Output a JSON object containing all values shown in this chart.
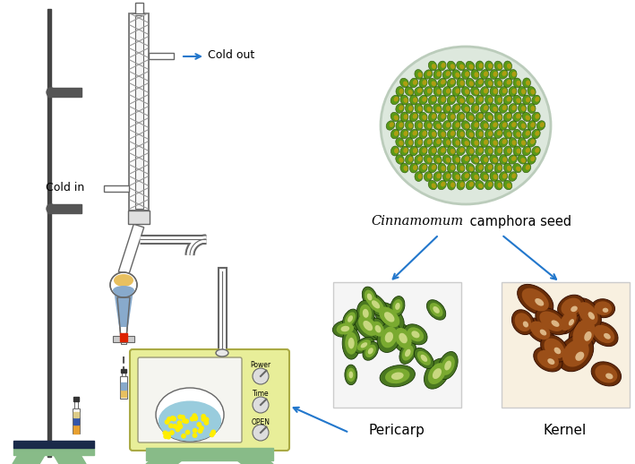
{
  "bg_color": "#ffffff",
  "text_cold_out": "Cold out",
  "text_cold_in": "Cold in",
  "text_seed_label": "camphora seed",
  "text_seed_label_italic": "Cinnamomum",
  "text_pericarp": "Pericarp",
  "text_kernel": "Kernel",
  "text_power": "Power",
  "text_time": "Time",
  "text_open": "OPEN",
  "arrow_color": "#2277cc",
  "line_color": "#666666",
  "microwave_color": "#e8ee99",
  "stand_color": "#88bb88",
  "flask_liquid_color": "#99ccdd",
  "clamp_color": "#555555",
  "rod_color": "#444444",
  "yellow_dot_color": "#ffee00",
  "sep_yellow": "#e8c060",
  "sep_blue": "#88aacc",
  "seed_green": "#6aaa20",
  "seed_yellow": "#c8a010",
  "plate_color": "#dde8dd",
  "plate_border": "#bbccbb"
}
